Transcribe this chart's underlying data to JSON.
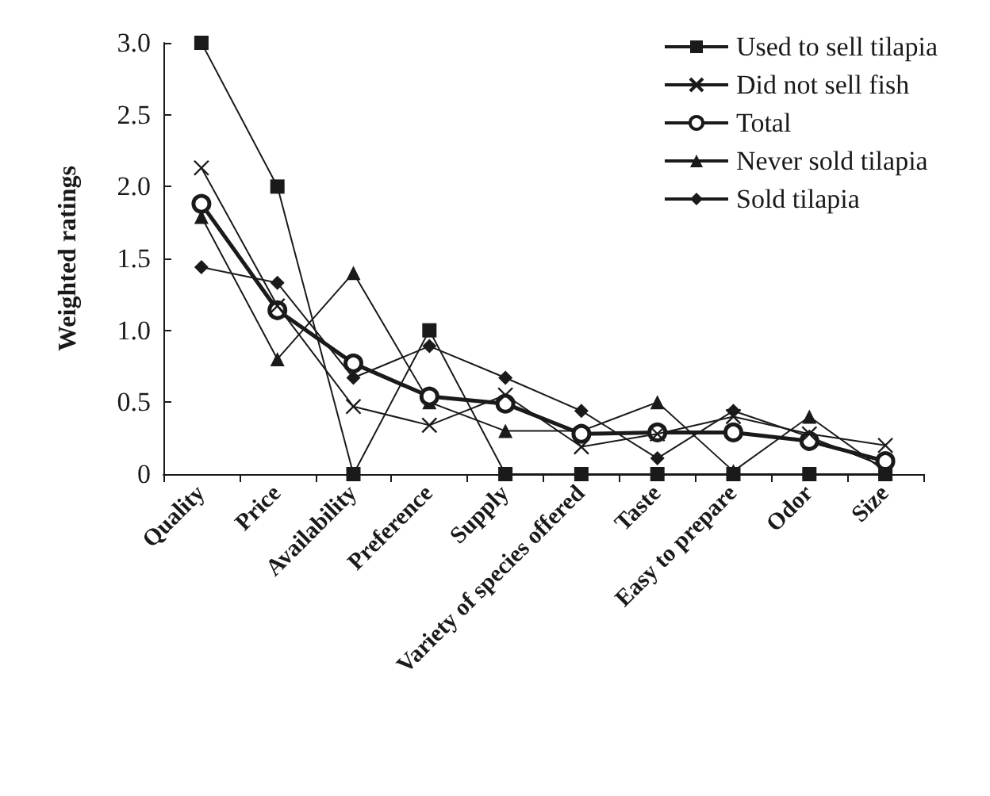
{
  "chart_data": {
    "type": "line",
    "ylabel": "Weighted ratings",
    "categories": [
      "Quality",
      "Price",
      "Availability",
      "Preference",
      "Supply",
      "Variety of species offered",
      "Taste",
      "Easy to prepare",
      "Odor",
      "Size"
    ],
    "series": [
      {
        "name": "Used to sell tilapia",
        "color": "#1a1a1a",
        "marker": "square",
        "values": [
          3,
          2,
          0,
          1,
          0,
          0,
          0,
          0,
          0,
          0
        ]
      },
      {
        "name": "Did not sell fish",
        "color": "#1a1a1a",
        "marker": "cross",
        "values": [
          2.13,
          1.17,
          0.47,
          0.34,
          0.55,
          0.19,
          0.28,
          0.4,
          0.28,
          0.2
        ]
      },
      {
        "name": "Total",
        "color": "#1a1a1a",
        "marker": "circle",
        "values": [
          1.88,
          1.14,
          0.77,
          0.54,
          0.49,
          0.28,
          0.29,
          0.29,
          0.23,
          0.09
        ]
      },
      {
        "name": "Never sold tilapia",
        "color": "#1a1a1a",
        "marker": "triangle",
        "values": [
          1.79,
          0.8,
          1.4,
          0.5,
          0.3,
          0.3,
          0.5,
          0.02,
          0.4,
          0.02
        ]
      },
      {
        "name": "Sold tilapia",
        "color": "#1a1a1a",
        "marker": "diamond",
        "values": [
          1.44,
          1.33,
          0.67,
          0.89,
          0.67,
          0.44,
          0.11,
          0.44,
          0.26,
          0.05
        ]
      }
    ],
    "ylim": [
      0,
      3
    ],
    "yticks": [
      0,
      0.5,
      {
        "value": 1,
        "label": "1.0"
      },
      1.5,
      {
        "value": 2,
        "label": "2.0"
      },
      2.5,
      {
        "value": 3,
        "label": "3.0"
      }
    ],
    "legend": "top right",
    "grid": false
  }
}
